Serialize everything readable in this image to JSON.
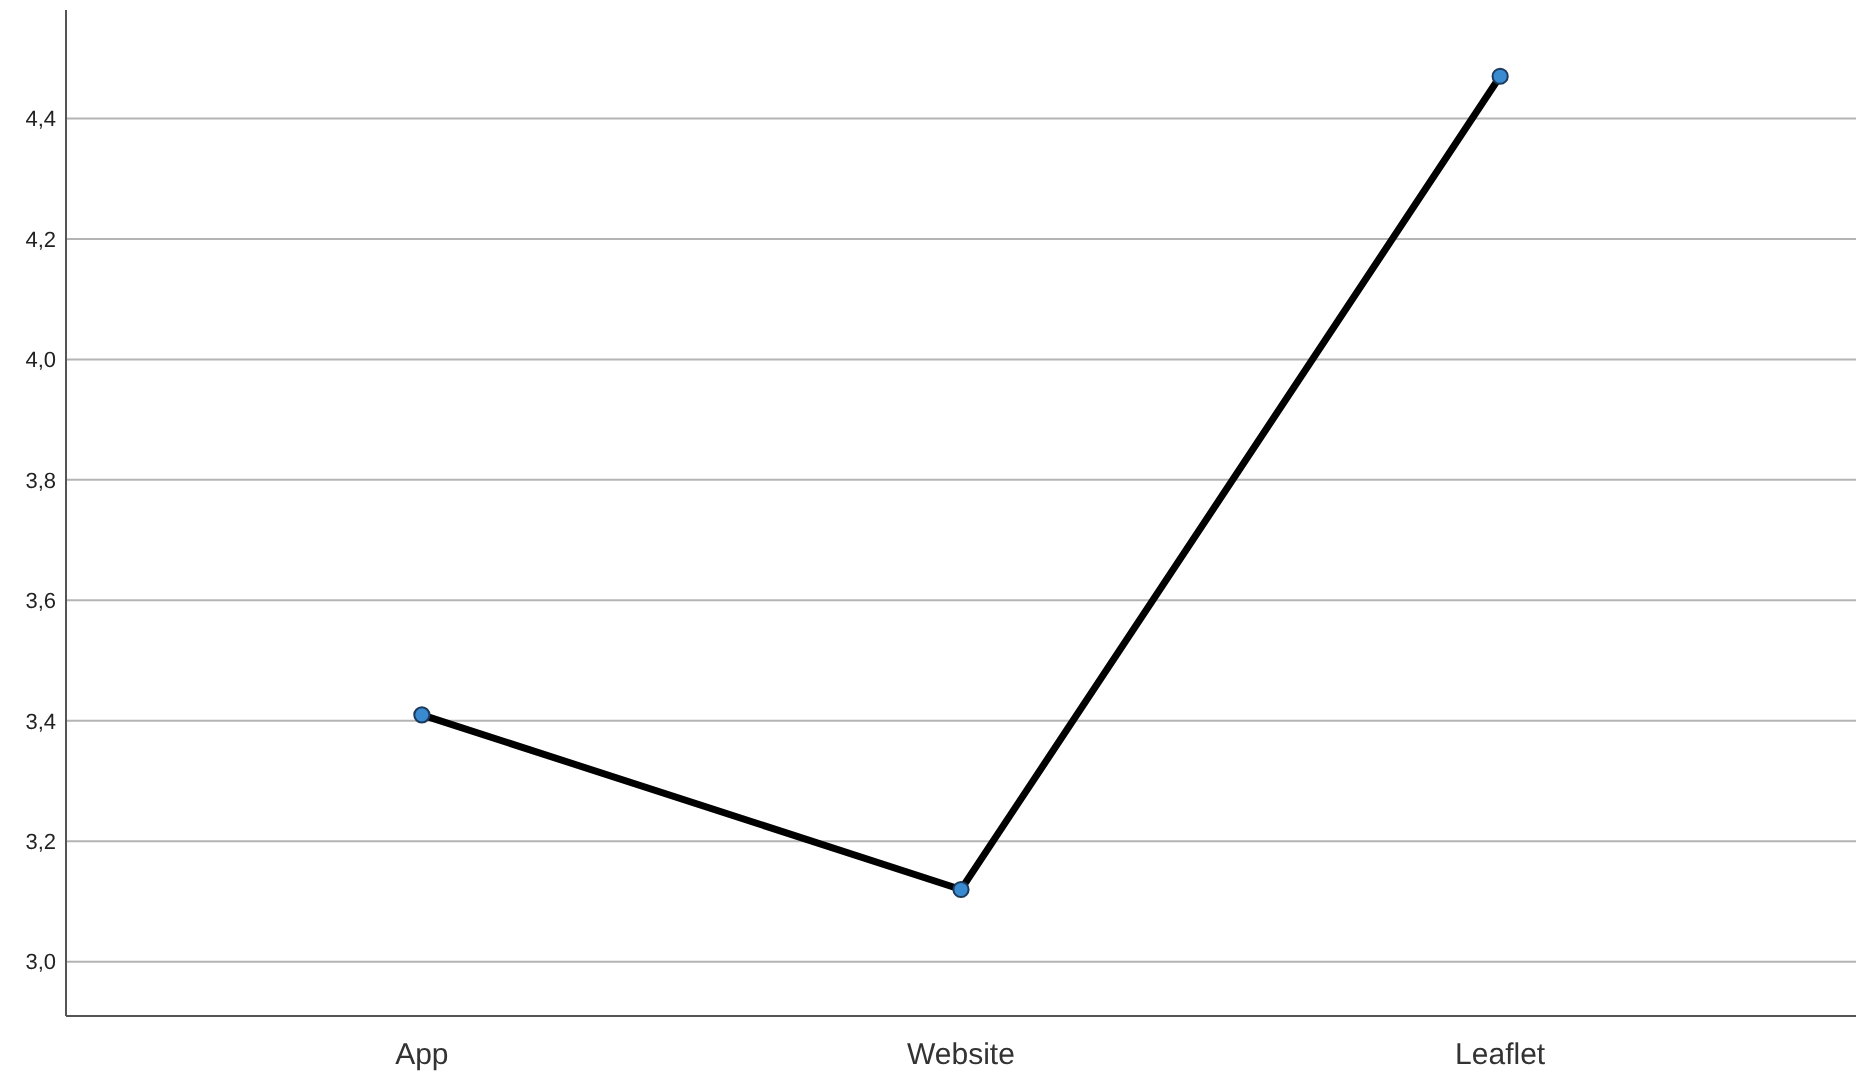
{
  "chart_data": {
    "type": "line",
    "categories": [
      "App",
      "Website",
      "Leaflet"
    ],
    "series": [
      {
        "color": "#000000",
        "values": [
          3.41,
          3.12,
          4.47
        ]
      }
    ],
    "ylim": [
      2.91,
      4.58
    ],
    "yticks": [
      {
        "value": 3.0,
        "label": "3,0"
      },
      {
        "value": 3.2,
        "label": "3,2"
      },
      {
        "value": 3.4,
        "label": "3,4"
      },
      {
        "value": 3.6,
        "label": "3,6"
      },
      {
        "value": 3.8,
        "label": "3,8"
      },
      {
        "value": 4.0,
        "label": "4,0"
      },
      {
        "value": 4.2,
        "label": "4,2"
      },
      {
        "value": 4.4,
        "label": "4,4"
      }
    ],
    "grid": "y",
    "marker": "circle",
    "line_style": "solid"
  }
}
